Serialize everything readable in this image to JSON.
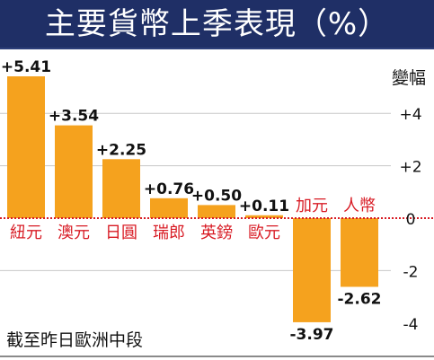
{
  "title": "主要貨幣上季表現（%）",
  "chart_data": {
    "type": "bar",
    "categories": [
      "紐元",
      "澳元",
      "日圓",
      "瑞郎",
      "英鎊",
      "歐元",
      "加元",
      "人幣"
    ],
    "values": [
      5.41,
      3.54,
      2.25,
      0.76,
      0.5,
      0.11,
      -3.97,
      -2.62
    ],
    "value_labels": [
      "+5.41",
      "+3.54",
      "+2.25",
      "+0.76",
      "+0.50",
      "+0.11",
      "-3.97",
      "-2.62"
    ],
    "ylabel": "變幅",
    "y_ticks": [
      "+4",
      "+2",
      "0",
      "-2",
      "-4"
    ],
    "ylim": [
      -4.2,
      5.6
    ],
    "grid": true,
    "annotation": "截至昨日歐洲中段",
    "colors": {
      "bar": "#f5a21e",
      "category_label": "#d81b24",
      "grid": "#c8c8c8",
      "zero_line": "#d81b24",
      "text": "#111111"
    }
  }
}
